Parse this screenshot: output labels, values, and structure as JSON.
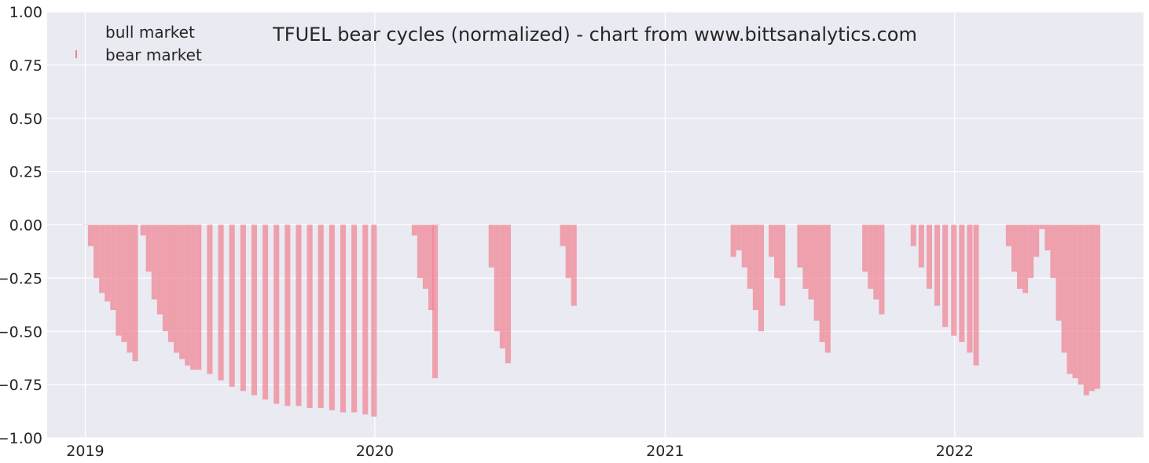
{
  "chart_data": {
    "type": "bar",
    "title": "TFUEL bear cycles (normalized)  - chart from www.bittsanalytics.com",
    "xlabel": "",
    "ylabel": "",
    "xlim": [
      "2018-11-14",
      "2022-08-27"
    ],
    "ylim": [
      -1.0,
      1.0
    ],
    "x_tick_labels": [
      "2019",
      "2020",
      "2021",
      "2022"
    ],
    "x_tick_dates": [
      "2019-01-01",
      "2020-01-01",
      "2021-01-01",
      "2022-01-01"
    ],
    "y_tick_labels": [
      "1.00",
      "0.75",
      "0.50",
      "0.25",
      "0.00",
      "−0.25",
      "−0.50",
      "−0.75",
      "−1.00"
    ],
    "y_ticks": [
      1.0,
      0.75,
      0.5,
      0.25,
      0.0,
      -0.25,
      -0.5,
      -0.75,
      -1.0
    ],
    "grid": true,
    "legend_position": "top-left",
    "series": [
      {
        "name": "bull market",
        "color": "#2ca02c",
        "values": []
      },
      {
        "name": "bear market",
        "color": "#f08090",
        "points": [
          [
            "2019-01-01",
            0.0
          ],
          [
            "2019-01-08",
            -0.1
          ],
          [
            "2019-01-15",
            -0.25
          ],
          [
            "2019-01-22",
            -0.32
          ],
          [
            "2019-01-29",
            -0.36
          ],
          [
            "2019-02-05",
            -0.4
          ],
          [
            "2019-02-12",
            -0.52
          ],
          [
            "2019-02-19",
            -0.55
          ],
          [
            "2019-02-26",
            -0.6
          ],
          [
            "2019-03-05",
            -0.64
          ],
          [
            "2019-03-15",
            -0.05
          ],
          [
            "2019-03-22",
            -0.22
          ],
          [
            "2019-03-29",
            -0.35
          ],
          [
            "2019-04-05",
            -0.42
          ],
          [
            "2019-04-12",
            -0.5
          ],
          [
            "2019-04-19",
            -0.55
          ],
          [
            "2019-04-26",
            -0.6
          ],
          [
            "2019-05-03",
            -0.63
          ],
          [
            "2019-05-10",
            -0.66
          ],
          [
            "2019-05-17",
            -0.68
          ],
          [
            "2019-05-24",
            -0.68
          ],
          [
            "2019-06-07",
            -0.7
          ],
          [
            "2019-06-21",
            -0.73
          ],
          [
            "2019-07-05",
            -0.76
          ],
          [
            "2019-07-19",
            -0.78
          ],
          [
            "2019-08-02",
            -0.8
          ],
          [
            "2019-08-16",
            -0.82
          ],
          [
            "2019-08-30",
            -0.84
          ],
          [
            "2019-09-13",
            -0.85
          ],
          [
            "2019-09-27",
            -0.85
          ],
          [
            "2019-10-11",
            -0.86
          ],
          [
            "2019-10-25",
            -0.86
          ],
          [
            "2019-11-08",
            -0.87
          ],
          [
            "2019-11-22",
            -0.88
          ],
          [
            "2019-12-06",
            -0.88
          ],
          [
            "2019-12-20",
            -0.89
          ],
          [
            "2019-12-31",
            -0.9
          ],
          [
            "2020-02-20",
            -0.05
          ],
          [
            "2020-02-27",
            -0.25
          ],
          [
            "2020-03-05",
            -0.3
          ],
          [
            "2020-03-12",
            -0.4
          ],
          [
            "2020-03-17",
            -0.72
          ],
          [
            "2020-03-20",
            0.0
          ],
          [
            "2020-05-27",
            -0.2
          ],
          [
            "2020-06-03",
            -0.5
          ],
          [
            "2020-06-10",
            -0.58
          ],
          [
            "2020-06-17",
            -0.65
          ],
          [
            "2020-08-25",
            -0.1
          ],
          [
            "2020-09-01",
            -0.25
          ],
          [
            "2020-09-08",
            -0.38
          ],
          [
            "2021-03-28",
            -0.15
          ],
          [
            "2021-04-04",
            -0.12
          ],
          [
            "2021-04-11",
            -0.2
          ],
          [
            "2021-04-18",
            -0.3
          ],
          [
            "2021-04-25",
            -0.4
          ],
          [
            "2021-05-02",
            -0.5
          ],
          [
            "2021-05-15",
            -0.15
          ],
          [
            "2021-05-22",
            -0.25
          ],
          [
            "2021-05-29",
            -0.38
          ],
          [
            "2021-06-20",
            -0.2
          ],
          [
            "2021-06-27",
            -0.3
          ],
          [
            "2021-07-04",
            -0.35
          ],
          [
            "2021-07-11",
            -0.45
          ],
          [
            "2021-07-18",
            -0.55
          ],
          [
            "2021-07-25",
            -0.6
          ],
          [
            "2021-09-10",
            -0.22
          ],
          [
            "2021-09-17",
            -0.3
          ],
          [
            "2021-09-24",
            -0.35
          ],
          [
            "2021-10-01",
            -0.42
          ],
          [
            "2021-11-10",
            -0.1
          ],
          [
            "2021-11-20",
            -0.2
          ],
          [
            "2021-11-30",
            -0.3
          ],
          [
            "2021-12-10",
            -0.38
          ],
          [
            "2021-12-20",
            -0.48
          ],
          [
            "2021-12-31",
            -0.52
          ],
          [
            "2022-01-10",
            -0.55
          ],
          [
            "2022-01-20",
            -0.6
          ],
          [
            "2022-01-28",
            -0.66
          ],
          [
            "2022-03-10",
            -0.1
          ],
          [
            "2022-03-17",
            -0.22
          ],
          [
            "2022-03-24",
            -0.3
          ],
          [
            "2022-03-31",
            -0.32
          ],
          [
            "2022-04-07",
            -0.25
          ],
          [
            "2022-04-14",
            -0.15
          ],
          [
            "2022-04-21",
            -0.02
          ],
          [
            "2022-04-28",
            -0.12
          ],
          [
            "2022-05-05",
            -0.25
          ],
          [
            "2022-05-12",
            -0.45
          ],
          [
            "2022-05-19",
            -0.6
          ],
          [
            "2022-05-26",
            -0.7
          ],
          [
            "2022-06-02",
            -0.72
          ],
          [
            "2022-06-09",
            -0.75
          ],
          [
            "2022-06-16",
            -0.8
          ],
          [
            "2022-06-23",
            -0.78
          ],
          [
            "2022-06-30",
            -0.77
          ]
        ]
      }
    ]
  }
}
